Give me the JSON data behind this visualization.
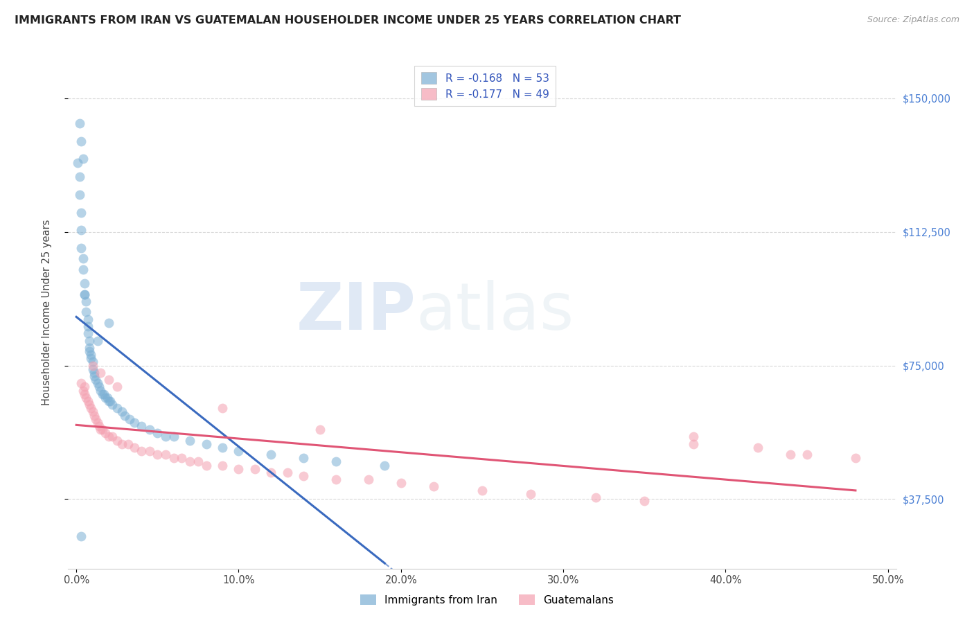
{
  "title": "IMMIGRANTS FROM IRAN VS GUATEMALAN HOUSEHOLDER INCOME UNDER 25 YEARS CORRELATION CHART",
  "source": "Source: ZipAtlas.com",
  "ylabel": "Householder Income Under 25 years",
  "xlabel_ticks": [
    "0.0%",
    "10.0%",
    "20.0%",
    "30.0%",
    "40.0%",
    "50.0%"
  ],
  "xlabel_vals": [
    0.0,
    0.1,
    0.2,
    0.3,
    0.4,
    0.5
  ],
  "ylabel_ticks_right": [
    "$37,500",
    "$75,000",
    "$112,500",
    "$150,000"
  ],
  "ylabel_vals_right": [
    37500,
    75000,
    112500,
    150000
  ],
  "xlim": [
    -0.005,
    0.505
  ],
  "ylim": [
    18000,
    162000
  ],
  "iran_R": -0.168,
  "iran_N": 53,
  "guate_R": -0.177,
  "guate_N": 49,
  "iran_color": "#7bafd4",
  "guate_color": "#f4a0b0",
  "iran_line_color": "#3a6abf",
  "guate_line_color": "#e05575",
  "background_color": "#ffffff",
  "grid_color": "#d8d8d8",
  "title_color": "#222222",
  "axis_right_color": "#4a7fd4",
  "watermark_zip": "ZIP",
  "watermark_atlas": "atlas",
  "iran_x": [
    0.001,
    0.002,
    0.002,
    0.003,
    0.003,
    0.003,
    0.004,
    0.004,
    0.005,
    0.005,
    0.006,
    0.006,
    0.007,
    0.007,
    0.007,
    0.008,
    0.008,
    0.009,
    0.009,
    0.01,
    0.01,
    0.011,
    0.011,
    0.012,
    0.013,
    0.014,
    0.015,
    0.016,
    0.017,
    0.018,
    0.019,
    0.02,
    0.021,
    0.022,
    0.025,
    0.028,
    0.03,
    0.033,
    0.036,
    0.04,
    0.045,
    0.05,
    0.055,
    0.06,
    0.07,
    0.08,
    0.09,
    0.1,
    0.12,
    0.14,
    0.16,
    0.19,
    0.003
  ],
  "iran_y": [
    132000,
    128000,
    123000,
    118000,
    113000,
    108000,
    105000,
    102000,
    98000,
    95000,
    93000,
    90000,
    88000,
    86000,
    84000,
    82000,
    80000,
    78000,
    77000,
    76000,
    74000,
    73000,
    72000,
    71000,
    70000,
    69000,
    68000,
    67000,
    67000,
    66000,
    66000,
    65000,
    65000,
    64000,
    63000,
    62000,
    61000,
    60000,
    59000,
    58000,
    57000,
    56000,
    55000,
    55000,
    54000,
    53000,
    52000,
    51000,
    50000,
    49000,
    48000,
    47000,
    27000
  ],
  "guate_x": [
    0.003,
    0.004,
    0.005,
    0.006,
    0.007,
    0.008,
    0.009,
    0.01,
    0.011,
    0.012,
    0.013,
    0.014,
    0.015,
    0.016,
    0.018,
    0.02,
    0.022,
    0.025,
    0.028,
    0.032,
    0.036,
    0.04,
    0.045,
    0.05,
    0.055,
    0.06,
    0.065,
    0.07,
    0.075,
    0.08,
    0.09,
    0.1,
    0.11,
    0.12,
    0.13,
    0.14,
    0.16,
    0.18,
    0.2,
    0.22,
    0.25,
    0.28,
    0.32,
    0.35,
    0.38,
    0.42,
    0.45,
    0.48,
    0.005
  ],
  "guate_y": [
    70000,
    68000,
    67000,
    66000,
    65000,
    64000,
    63000,
    62000,
    61000,
    60000,
    59000,
    58000,
    57000,
    57000,
    56000,
    55000,
    55000,
    54000,
    53000,
    53000,
    52000,
    51000,
    51000,
    50000,
    50000,
    49000,
    49000,
    48000,
    48000,
    47000,
    47000,
    46000,
    46000,
    45000,
    45000,
    44000,
    43000,
    43000,
    42000,
    41000,
    40000,
    39000,
    38000,
    37000,
    55000,
    52000,
    50000,
    49000,
    69000
  ],
  "iran_scatter_extra": {
    "x": [
      0.002,
      0.003,
      0.004,
      0.005,
      0.008,
      0.013,
      0.02
    ],
    "y": [
      143000,
      138000,
      133000,
      95000,
      79000,
      82000,
      87000
    ]
  },
  "guate_scatter_extra": {
    "x": [
      0.01,
      0.015,
      0.02,
      0.025,
      0.09,
      0.15,
      0.38,
      0.44
    ],
    "y": [
      75000,
      73000,
      71000,
      69000,
      63000,
      57000,
      53000,
      50000
    ]
  }
}
